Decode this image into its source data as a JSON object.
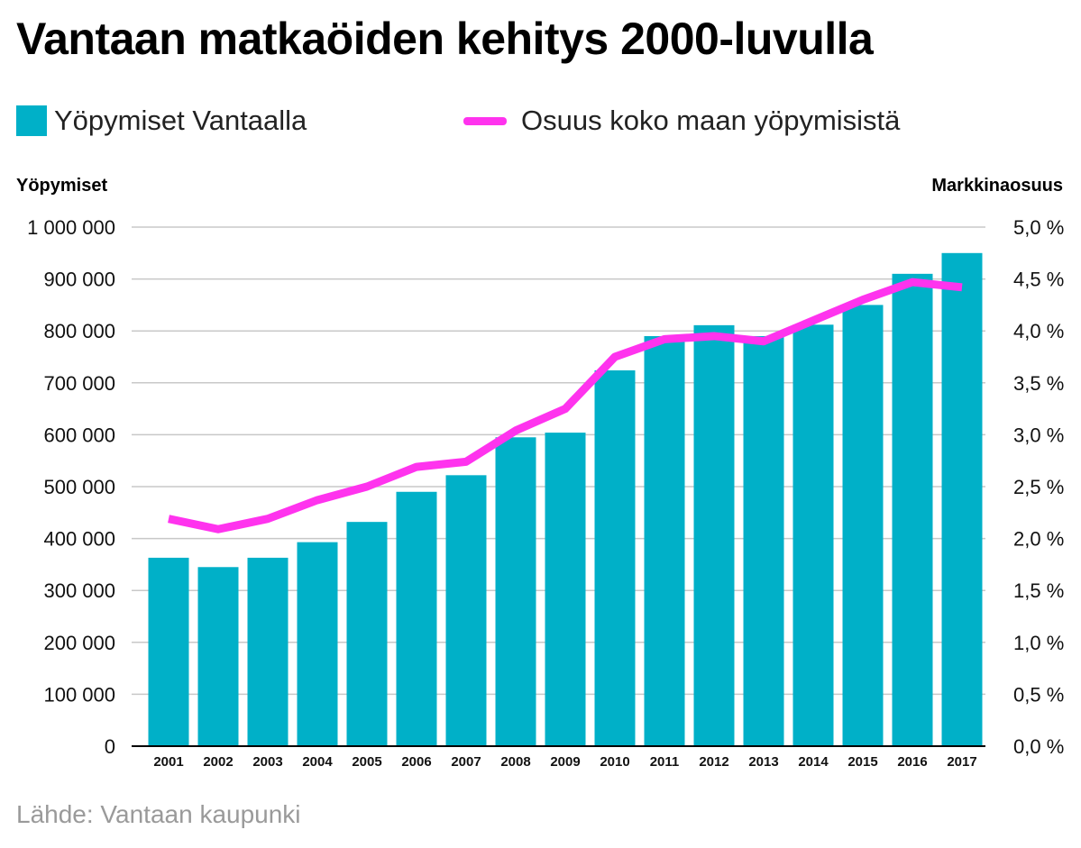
{
  "title": "Vantaan matkaöiden kehitys 2000-luvulla",
  "legend": {
    "bars_label": "Yöpymiset Vantaalla",
    "line_label": "Osuus koko maan yöpymisistä"
  },
  "axes": {
    "left_title": "Yöpymiset",
    "right_title": "Markkinaosuus"
  },
  "source": "Lähde: Vantaan kaupunki",
  "colors": {
    "bar": "#00b0c8",
    "line": "#ff33ee",
    "grid": "#c8c8c8"
  },
  "chart_data": {
    "type": "bar",
    "categories": [
      "2001",
      "2002",
      "2003",
      "2004",
      "2005",
      "2006",
      "2007",
      "2008",
      "2009",
      "2010",
      "2011",
      "2012",
      "2013",
      "2014",
      "2015",
      "2016",
      "2017"
    ],
    "series": [
      {
        "name": "Yöpymiset Vantaalla",
        "type": "bar",
        "axis": "left",
        "values": [
          363000,
          345000,
          363000,
          393000,
          432000,
          490000,
          522000,
          595000,
          604000,
          724000,
          790000,
          811000,
          790000,
          812000,
          850000,
          910000,
          950000
        ]
      },
      {
        "name": "Osuus koko maan yöpymisistä",
        "type": "line",
        "axis": "right",
        "values": [
          2.19,
          2.09,
          2.19,
          2.37,
          2.5,
          2.69,
          2.74,
          3.04,
          3.25,
          3.75,
          3.92,
          3.95,
          3.9,
          4.1,
          4.3,
          4.47,
          4.42
        ]
      }
    ],
    "ylim_left": [
      0,
      1000000
    ],
    "ylim_right": [
      0,
      5.0
    ],
    "left_ticks": [
      "0",
      "100 000",
      "200 000",
      "300 000",
      "400 000",
      "500 000",
      "600 000",
      "700 000",
      "800 000",
      "900 000",
      "1 000 000"
    ],
    "right_ticks": [
      "0,0 %",
      "0,5 %",
      "1,0 %",
      "1,5 %",
      "2,0 %",
      "2,5 %",
      "3,0 %",
      "3,5 %",
      "4,0 %",
      "4,5 %",
      "5,0 %"
    ],
    "grid": true,
    "legend_position": "top"
  }
}
